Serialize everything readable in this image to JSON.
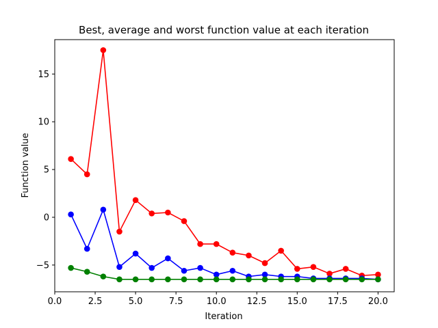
{
  "chart_data": {
    "type": "line",
    "title": "Best, average and worst function value at each iteration",
    "xlabel": "Iteration",
    "ylabel": "Function value",
    "xlim": [
      0,
      21
    ],
    "ylim": [
      -7.8,
      18.6
    ],
    "xticks": [
      0.0,
      2.5,
      5.0,
      7.5,
      10.0,
      12.5,
      15.0,
      17.5,
      20.0
    ],
    "xtick_labels": [
      "0.0",
      "2.5",
      "5.0",
      "7.5",
      "10.0",
      "12.5",
      "15.0",
      "17.5",
      "20.0"
    ],
    "yticks": [
      -5,
      0,
      5,
      10,
      15
    ],
    "ytick_labels": [
      "−5",
      "0",
      "5",
      "10",
      "15"
    ],
    "grid": false,
    "x": [
      1,
      2,
      3,
      4,
      5,
      6,
      7,
      8,
      9,
      10,
      11,
      12,
      13,
      14,
      15,
      16,
      17,
      18,
      19,
      20
    ],
    "series": [
      {
        "color": "#ff0000",
        "values": [
          6.1,
          4.5,
          17.5,
          -1.5,
          1.8,
          0.4,
          0.5,
          -0.4,
          -2.8,
          -2.8,
          -3.7,
          -4.0,
          -4.8,
          -3.5,
          -5.4,
          -5.2,
          -5.9,
          -5.4,
          -6.1,
          -6.0
        ]
      },
      {
        "color": "#0000ff",
        "values": [
          0.3,
          -3.3,
          0.8,
          -5.2,
          -3.8,
          -5.3,
          -4.3,
          -5.6,
          -5.3,
          -6.0,
          -5.6,
          -6.2,
          -6.0,
          -6.2,
          -6.2,
          -6.4,
          -6.4,
          -6.4,
          -6.4,
          -6.5
        ]
      },
      {
        "color": "#008000",
        "values": [
          -5.3,
          -5.7,
          -6.2,
          -6.5,
          -6.5,
          -6.5,
          -6.5,
          -6.5,
          -6.5,
          -6.5,
          -6.5,
          -6.5,
          -6.5,
          -6.5,
          -6.5,
          -6.5,
          -6.5,
          -6.5,
          -6.5,
          -6.5
        ]
      }
    ]
  }
}
